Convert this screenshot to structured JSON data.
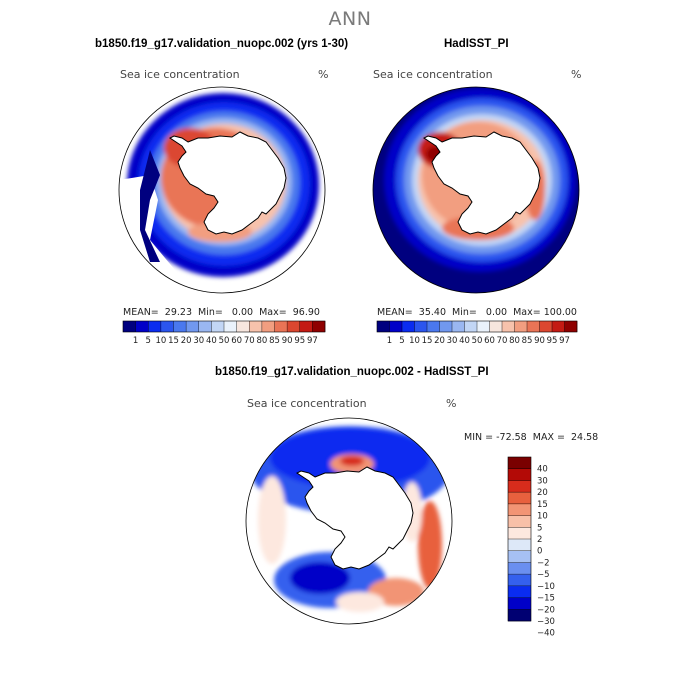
{
  "figure_title": "ANN",
  "panels": {
    "left": {
      "title": "b1850.f19_g17.validation_nuopc.002 (yrs 1-30)",
      "variable": "Sea ice concentration",
      "units": "%",
      "stats": "MEAN=  29.23  Min=   0.00  Max=  96.90"
    },
    "right": {
      "title": "HadISST_PI",
      "variable": "Sea ice concentration",
      "units": "%",
      "stats": "MEAN=  35.40  Min=   0.00  Max= 100.00"
    },
    "diff": {
      "title": "b1850.f19_g17.validation_nuopc.002 - HadISST_PI",
      "variable": "Sea ice concentration",
      "units": "%",
      "stats": "MIN = -72.58  MAX =  24.58"
    }
  },
  "colors": {
    "seq": [
      "#00007f",
      "#0000c8",
      "#0a2cf0",
      "#2b55ee",
      "#4a78ee",
      "#7198ef",
      "#9ab7f1",
      "#c2d6f5",
      "#eaf2fb",
      "#f7e6de",
      "#f7c2ac",
      "#f29e80",
      "#e97456",
      "#db4730",
      "#c41a13",
      "#8f0000"
    ],
    "diff": [
      "#000072",
      "#0000c8",
      "#0a2cf0",
      "#3460ee",
      "#6a8ff0",
      "#a6c0f3",
      "#dde8f8",
      "#fde8df",
      "#f8c0a8",
      "#f29474",
      "#e8603e",
      "#d72c1c",
      "#b30a06",
      "#7a0000"
    ]
  },
  "chart_data": [
    {
      "type": "heatmap",
      "projection": "south-polar-stereographic",
      "title": "b1850.f19_g17.validation_nuopc.002 (yrs 1-30)",
      "variable": "Sea ice concentration",
      "units": "%",
      "mean": 29.23,
      "min": 0.0,
      "max": 96.9,
      "colorbar_levels": [
        1,
        5,
        10,
        15,
        20,
        30,
        40,
        50,
        60,
        70,
        80,
        85,
        90,
        95,
        97
      ],
      "colorbar_labels": [
        "1",
        "5",
        "10",
        "15",
        "20",
        "30",
        "40",
        "50",
        "60",
        "70",
        "80",
        "85",
        "90",
        "95",
        "97"
      ]
    },
    {
      "type": "heatmap",
      "projection": "south-polar-stereographic",
      "title": "HadISST_PI",
      "variable": "Sea ice concentration",
      "units": "%",
      "mean": 35.4,
      "min": 0.0,
      "max": 100.0,
      "colorbar_levels": [
        1,
        5,
        10,
        15,
        20,
        30,
        40,
        50,
        60,
        70,
        80,
        85,
        90,
        95,
        97
      ],
      "colorbar_labels": [
        "1",
        "5",
        "10",
        "15",
        "20",
        "30",
        "40",
        "50",
        "60",
        "70",
        "80",
        "85",
        "90",
        "95",
        "97"
      ]
    },
    {
      "type": "heatmap",
      "projection": "south-polar-stereographic",
      "title": "b1850.f19_g17.validation_nuopc.002 - HadISST_PI",
      "variable": "Sea ice concentration",
      "units": "%",
      "min": -72.58,
      "max": 24.58,
      "colorbar_levels": [
        40,
        30,
        20,
        15,
        10,
        5,
        2,
        0,
        -2,
        -5,
        -10,
        -15,
        -20,
        -30,
        -40
      ],
      "colorbar_labels": [
        "40",
        "30",
        "20",
        "15",
        "10",
        "5",
        "2",
        "0",
        "−2",
        "−5",
        "−10",
        "−15",
        "−20",
        "−30",
        "−40"
      ]
    }
  ]
}
